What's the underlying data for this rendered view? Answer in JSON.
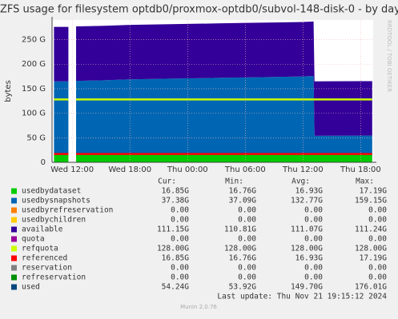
{
  "chart_data": {
    "type": "stacked-area",
    "title": "ZFS usage for filesystem optdb0/proxmox-optdb0/subvol-148-disk-0 - by day",
    "ylabel": "bytes",
    "side_text": "RRDTOOL / TOBI OETIKER",
    "x": [
      -1.9,
      -0.4,
      0,
      0.4,
      3,
      6,
      9,
      12,
      15,
      18,
      21,
      24,
      25.1,
      25.2,
      27,
      30,
      31.2
    ],
    "xlim": [
      -2.1,
      31.3
    ],
    "xticks": [
      {
        "value": 0,
        "label": "Wed 12:00"
      },
      {
        "value": 6,
        "label": "Wed 18:00"
      },
      {
        "value": 12,
        "label": "Thu 00:00"
      },
      {
        "value": 18,
        "label": "Thu 06:00"
      },
      {
        "value": 24,
        "label": "Thu 12:00"
      },
      {
        "value": 30,
        "label": "Thu 18:00"
      }
    ],
    "ylim": [
      0,
      290
    ],
    "yticks": [
      0,
      {
        "value": 50,
        "label": "50 G"
      },
      {
        "value": 100,
        "label": "100 G"
      },
      {
        "value": 150,
        "label": "150 G"
      },
      {
        "value": 200,
        "label": "200 G"
      },
      {
        "value": 250,
        "label": "250 G"
      }
    ],
    "grid": true,
    "columns": [
      "Cur:",
      "Min:",
      "Avg:",
      "Max:"
    ],
    "series": [
      {
        "name": "usedbydataset",
        "color": "#00cc00",
        "style": "area",
        "values": [
          17,
          17,
          null,
          17,
          17,
          17,
          17,
          17,
          17,
          17,
          17,
          17,
          17,
          17,
          17,
          17,
          17
        ],
        "stats": [
          "16.85G",
          "16.76G",
          "16.93G",
          "17.19G"
        ]
      },
      {
        "name": "usedbysnapshots",
        "color": "#0066b3",
        "style": "area",
        "values": [
          148,
          148,
          null,
          149,
          150,
          152,
          153,
          154,
          155,
          156,
          157,
          158,
          159,
          37,
          37.1,
          37.3,
          37.4
        ],
        "stats": [
          "37.38G",
          "37.09G",
          "132.77G",
          "159.15G"
        ]
      },
      {
        "name": "usedbyrefreservation",
        "color": "#ff8000",
        "style": "none",
        "stats": [
          "0.00",
          "0.00",
          "0.00",
          "0.00"
        ]
      },
      {
        "name": "usedbychildren",
        "color": "#ffcc00",
        "style": "none",
        "stats": [
          "0.00",
          "0.00",
          "0.00",
          "0.00"
        ]
      },
      {
        "name": "available",
        "color": "#330099",
        "style": "area",
        "values": [
          111,
          111,
          null,
          111,
          111,
          111,
          111,
          111,
          111,
          111,
          111,
          111,
          111,
          111,
          111,
          111,
          111
        ],
        "stats": [
          "111.15G",
          "110.81G",
          "111.07G",
          "111.24G"
        ]
      },
      {
        "name": "quota",
        "color": "#990099",
        "style": "none",
        "stats": [
          "0.00",
          "0.00",
          "0.00",
          "0.00"
        ]
      },
      {
        "name": "refquota",
        "color": "#ccff00",
        "style": "line",
        "values": [
          128,
          128,
          null,
          128,
          128,
          128,
          128,
          128,
          128,
          128,
          128,
          128,
          128,
          128,
          128,
          128,
          128
        ],
        "stats": [
          "128.00G",
          "128.00G",
          "128.00G",
          "128.00G"
        ]
      },
      {
        "name": "referenced",
        "color": "#ff0000",
        "style": "line",
        "values": [
          17,
          17,
          null,
          17,
          17,
          17,
          17,
          17,
          17,
          17,
          17,
          17,
          17,
          17,
          17,
          17,
          17
        ],
        "stats": [
          "16.85G",
          "16.76G",
          "16.93G",
          "17.19G"
        ]
      },
      {
        "name": "reservation",
        "color": "#808080",
        "style": "none",
        "stats": [
          "0.00",
          "0.00",
          "0.00",
          "0.00"
        ]
      },
      {
        "name": "refreservation",
        "color": "#008f00",
        "style": "none",
        "stats": [
          "0.00",
          "0.00",
          "0.00",
          "0.00"
        ]
      },
      {
        "name": "used",
        "color": "#00487d",
        "style": "none",
        "stats": [
          "54.24G",
          "53.92G",
          "149.70G",
          "176.01G"
        ]
      }
    ],
    "last_update": "Last update: Thu Nov 21 19:15:12 2024",
    "footer": "Munin 2.0.76"
  }
}
